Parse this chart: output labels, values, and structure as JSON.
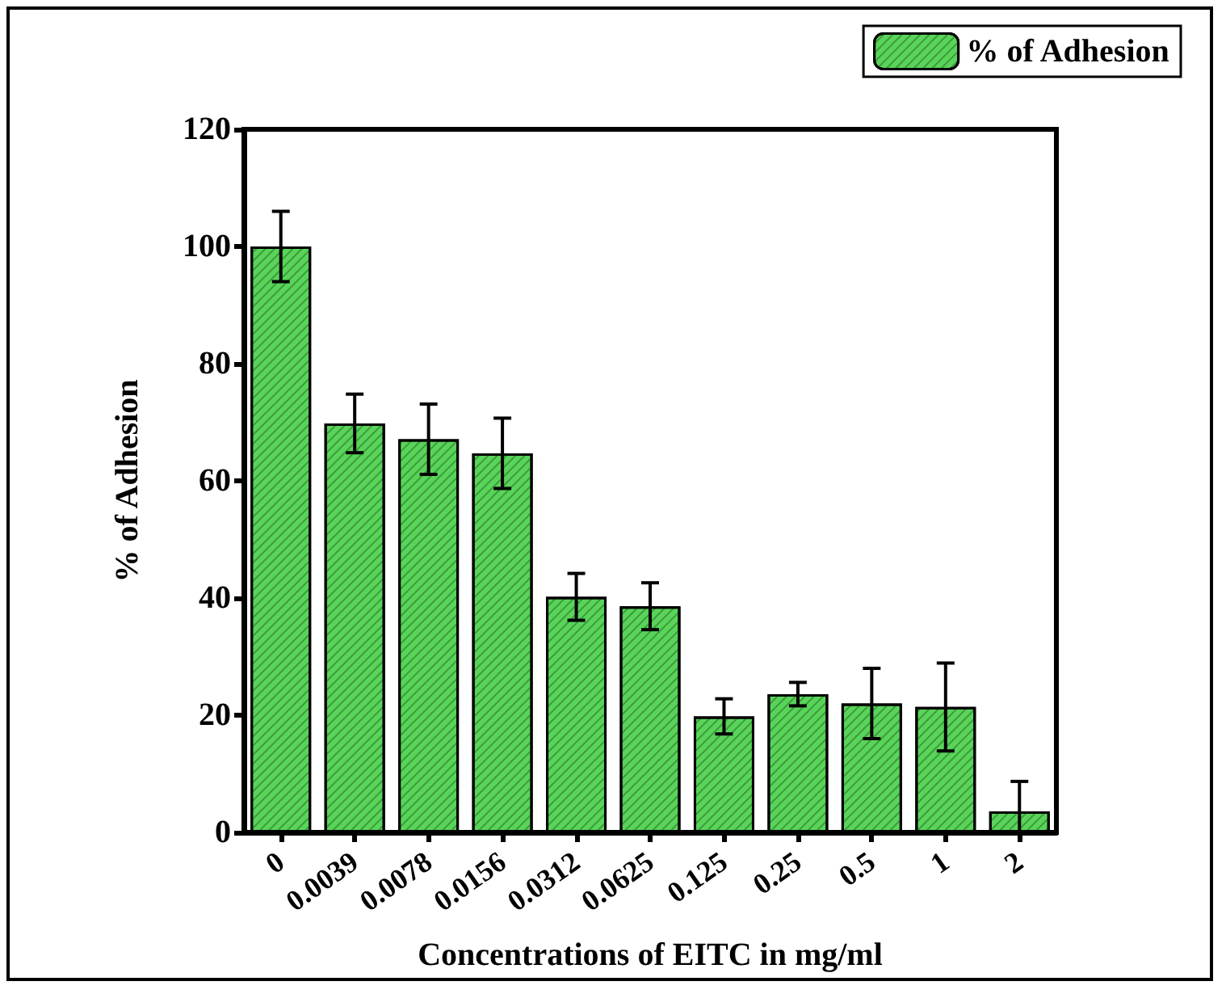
{
  "chart_data": {
    "type": "bar",
    "xlabel": "Concentrations of EITC in mg/ml",
    "ylabel": "% of Adhesion",
    "categories": [
      "0",
      "0.0039",
      "0.0078",
      "0.0156",
      "0.0312",
      "0.0625",
      "0.125",
      "0.25",
      "0.5",
      "1",
      "2"
    ],
    "series": [
      {
        "name": "% of Adhesion",
        "color": "#58d558",
        "values": [
          100,
          69.8,
          67.1,
          64.7,
          40.2,
          38.6,
          19.8,
          23.6,
          22.0,
          21.4,
          3.6
        ],
        "errors": [
          6,
          5,
          6,
          6,
          4,
          4,
          3,
          2,
          6,
          7.5,
          [
            0,
            8.7
          ]
        ]
      }
    ],
    "ylim": [
      0,
      120
    ],
    "yticks": [
      0,
      20,
      40,
      60,
      80,
      100,
      120
    ],
    "grid": false,
    "legend": "top right"
  }
}
